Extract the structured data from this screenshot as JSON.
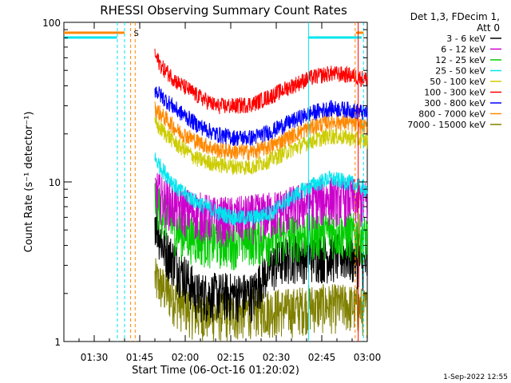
{
  "chart_data": {
    "type": "line",
    "title": "RHESSI Observing Summary Count Rates",
    "xlabel": "Start Time (06-Oct-16 01:20:02)",
    "ylabel": "Count Rate (s⁻¹ detector⁻¹)",
    "yscale": "log",
    "ylim": [
      1,
      100
    ],
    "xlim_minutes": [
      20,
      100
    ],
    "x_ticks": [
      {
        "min": 30,
        "label": "01:30"
      },
      {
        "min": 45,
        "label": "01:45"
      },
      {
        "min": 60,
        "label": "02:00"
      },
      {
        "min": 75,
        "label": "02:15"
      },
      {
        "min": 90,
        "label": "02:30"
      },
      {
        "min": 105,
        "label": "02:45"
      },
      {
        "min": 120,
        "label": "03:00"
      }
    ],
    "y_tick_labels": [
      {
        "value": 100,
        "label": "100"
      },
      {
        "value": 10,
        "label": "10"
      },
      {
        "value": 1,
        "label": "1"
      }
    ],
    "legend_header": [
      "Det 1,3, FDecim 1,",
      "Att 0"
    ],
    "legend_position": "right",
    "flag_marker": "S",
    "footer_date": "1-Sep-2022 12:55",
    "series": [
      {
        "name": "3 - 6 keV",
        "color": "#000000",
        "x": [
          44,
          46,
          50,
          55,
          60,
          65,
          70,
          72,
          75,
          80,
          85,
          90,
          95,
          100,
          104,
          107,
          110,
          115,
          118
        ],
        "y": [
          6,
          4,
          3,
          2,
          2,
          2,
          2,
          2.5,
          3,
          3.5,
          3.5,
          3.5,
          3.5,
          3,
          2.5,
          2.2,
          2,
          2,
          2
        ]
      },
      {
        "name": "6 - 12 keV",
        "color": "#cc00cc",
        "x": [
          44,
          46,
          50,
          55,
          60,
          65,
          70,
          75,
          80,
          85,
          90,
          95,
          100,
          105,
          110,
          115,
          118
        ],
        "y": [
          9,
          8,
          7,
          6.5,
          6,
          6,
          6.2,
          6.5,
          7,
          7.5,
          8,
          8,
          7.5,
          7,
          6.5,
          6.2,
          6
        ]
      },
      {
        "name": "12 - 25 keV",
        "color": "#00cc00",
        "x": [
          44,
          46,
          50,
          55,
          60,
          65,
          70,
          75,
          80,
          85,
          90,
          95,
          100,
          105,
          110,
          115,
          118
        ],
        "y": [
          8,
          6.5,
          5,
          4.5,
          4.3,
          4.3,
          4.5,
          4.5,
          4.7,
          4.8,
          5,
          4.8,
          4.6,
          4.4,
          4.3,
          4.2,
          4.5
        ]
      },
      {
        "name": "25 - 50 keV",
        "color": "#00e5ee",
        "x": [
          44,
          46,
          50,
          55,
          60,
          65,
          70,
          75,
          80,
          85,
          90,
          95,
          100,
          105,
          110,
          115,
          118
        ],
        "y": [
          14,
          12,
          9,
          7.5,
          6.5,
          6,
          6,
          6.5,
          8,
          9.5,
          10.5,
          10,
          9,
          7.5,
          6.5,
          5.8,
          5.8
        ]
      },
      {
        "name": "50 - 100 keV",
        "color": "#cccc00",
        "x": [
          44,
          46,
          50,
          55,
          60,
          65,
          70,
          75,
          80,
          85,
          90,
          95,
          100,
          105,
          110,
          115,
          118
        ],
        "y": [
          23,
          21,
          17,
          14,
          13,
          12.5,
          12.5,
          14,
          16,
          18,
          19.5,
          19,
          18,
          16,
          14.5,
          13,
          14
        ]
      },
      {
        "name": "100 - 300 keV",
        "color": "#ff0000",
        "x": [
          44,
          46,
          50,
          55,
          60,
          65,
          70,
          75,
          80,
          85,
          90,
          95,
          100,
          105,
          110,
          115,
          118
        ],
        "y": [
          62,
          52,
          42,
          35,
          30,
          30,
          31,
          35,
          40,
          45,
          48,
          47,
          44,
          38,
          33,
          30,
          35
        ]
      },
      {
        "name": "300 - 800 keV",
        "color": "#0000ff",
        "x": [
          44,
          46,
          50,
          55,
          60,
          65,
          70,
          75,
          80,
          85,
          90,
          95,
          100,
          105,
          110,
          115,
          118
        ],
        "y": [
          38,
          34,
          28,
          23,
          20,
          19,
          19,
          21,
          24,
          27,
          29,
          28.5,
          27,
          24,
          21,
          19,
          19
        ]
      },
      {
        "name": "800 - 7000 keV",
        "color": "#ff8800",
        "x": [
          44,
          46,
          50,
          55,
          60,
          65,
          70,
          75,
          80,
          85,
          90,
          95,
          100,
          105,
          110,
          115,
          118
        ],
        "y": [
          29,
          26,
          21,
          18,
          16,
          15.5,
          15.5,
          17,
          19.5,
          22,
          24,
          23.5,
          22,
          19.5,
          17,
          15.5,
          15
        ]
      },
      {
        "name": "7000 - 15000 keV",
        "color": "#808000",
        "x": [
          44,
          46,
          50,
          55,
          60,
          65,
          70,
          75,
          80,
          85,
          90,
          95,
          100,
          105,
          110,
          115,
          118
        ],
        "y": [
          2.5,
          2.2,
          1.8,
          1.5,
          1.5,
          1.5,
          1.6,
          1.6,
          1.6,
          1.7,
          1.7,
          1.7,
          1.6,
          1.6,
          1.5,
          1.5,
          1.5
        ]
      }
    ]
  }
}
